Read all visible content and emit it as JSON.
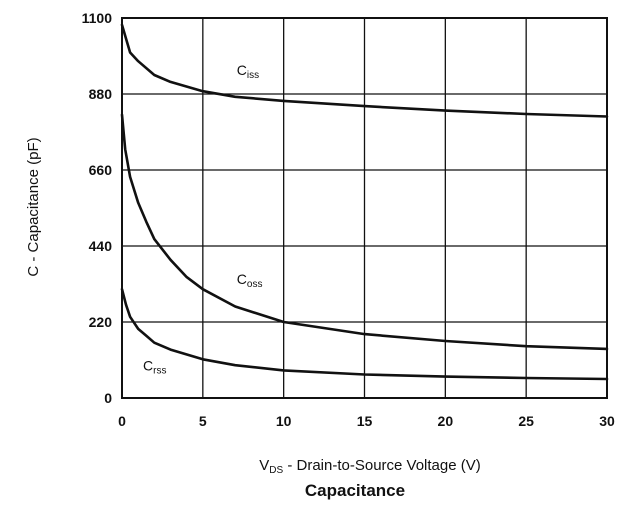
{
  "chart_data": {
    "type": "line",
    "title": "Capacitance",
    "xlabel_prefix": "V",
    "xlabel_sub": "DS",
    "xlabel_rest": " - Drain-to-Source Voltage (V)",
    "ylabel": "C - Capacitance (pF)",
    "xlim": [
      0,
      30
    ],
    "ylim": [
      0,
      1100
    ],
    "xticks": [
      0,
      5,
      10,
      15,
      20,
      25,
      30
    ],
    "yticks": [
      0,
      220,
      440,
      660,
      880,
      1100
    ],
    "grid": true,
    "series": [
      {
        "name_main": "C",
        "name_sub": "iss",
        "x": [
          0,
          0.5,
          1,
          2,
          3,
          5,
          7,
          10,
          15,
          20,
          25,
          30
        ],
        "values": [
          1080,
          1000,
          975,
          935,
          915,
          888,
          872,
          860,
          845,
          832,
          822,
          815
        ]
      },
      {
        "name_main": "C",
        "name_sub": "oss",
        "x": [
          0,
          0.2,
          0.5,
          1,
          1.5,
          2,
          3,
          4,
          5,
          7,
          10,
          15,
          20,
          25,
          30
        ],
        "values": [
          820,
          720,
          640,
          565,
          510,
          460,
          400,
          350,
          315,
          265,
          220,
          185,
          165,
          150,
          142
        ]
      },
      {
        "name_main": "C",
        "name_sub": "rss",
        "x": [
          0,
          0.25,
          0.5,
          1,
          1.5,
          2,
          3,
          5,
          7,
          10,
          15,
          20,
          25,
          30
        ],
        "values": [
          315,
          270,
          235,
          200,
          180,
          160,
          140,
          112,
          95,
          80,
          68,
          62,
          58,
          55
        ]
      }
    ],
    "labels": [
      {
        "series": 0,
        "x": 7.1,
        "y": 935
      },
      {
        "series": 1,
        "x": 7.1,
        "y": 330
      },
      {
        "series": 2,
        "x": 1.3,
        "y": 80
      }
    ]
  }
}
